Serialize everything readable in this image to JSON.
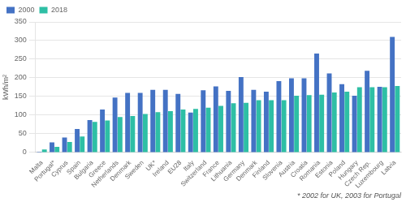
{
  "chart_data": {
    "type": "bar",
    "categories": [
      "Malta",
      "Portugal*",
      "Cyprus",
      "Spain",
      "Bulgaria",
      "Greece",
      "Netherlands",
      "Denmark",
      "Sweden",
      "UK*",
      "Ireland",
      "EU28",
      "Italy",
      "Switzerland",
      "France",
      "Lithuania",
      "Germany",
      "Denmark",
      "Finland",
      "Slovenia",
      "Austria",
      "Croatia",
      "Romania",
      "Estonia",
      "Poland",
      "Hungary",
      "Czech Rep.",
      "Luxembourg",
      "Latvia"
    ],
    "series": [
      {
        "name": "2000",
        "color": "#4472c4",
        "values": [
          2,
          27,
          40,
          63,
          87,
          115,
          147,
          160,
          160,
          168,
          168,
          157,
          107,
          167,
          177,
          165,
          202,
          168,
          163,
          191,
          199,
          199,
          265,
          212,
          183,
          152,
          219,
          176,
          310
        ]
      },
      {
        "name": "2018",
        "color": "#2ebfa5",
        "values": [
          8,
          15,
          28,
          43,
          82,
          86,
          95,
          98,
          103,
          108,
          111,
          115,
          117,
          120,
          125,
          132,
          133,
          140,
          140,
          140,
          152,
          154,
          155,
          161,
          163,
          175,
          175,
          175,
          178
        ]
      }
    ],
    "ylabel": "kWh/m²",
    "ylim": [
      0,
      350
    ],
    "yticks": [
      0,
      50,
      100,
      150,
      200,
      250,
      300,
      350
    ],
    "grid": true,
    "legend": "upper left",
    "annotations": [
      "* 2002 for UK, 2003 for Portugal"
    ]
  }
}
